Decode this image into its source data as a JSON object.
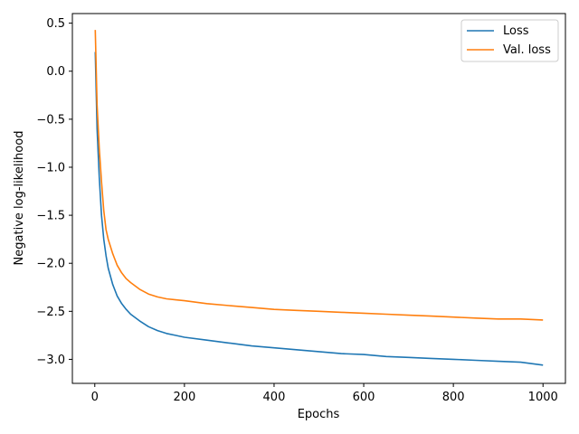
{
  "chart_data": {
    "type": "line",
    "xlabel": "Epochs",
    "ylabel": "Negative log-likelihood",
    "xlim": [
      -50,
      1050
    ],
    "ylim": [
      -3.25,
      0.6
    ],
    "xticks": [
      0,
      200,
      400,
      600,
      800,
      1000
    ],
    "yticks": [
      0.5,
      0.0,
      -0.5,
      -1.0,
      -1.5,
      -2.0,
      -2.5,
      -3.0
    ],
    "xtick_labels": [
      "0",
      "200",
      "400",
      "600",
      "800",
      "1000"
    ],
    "ytick_labels": [
      "0.5",
      "0.0",
      "−0.5",
      "−1.0",
      "−1.5",
      "−2.0",
      "−2.5",
      "−3.0"
    ],
    "grid": false,
    "legend": {
      "position": "top-right"
    },
    "series": [
      {
        "name": "Loss",
        "color": "#1f77b4",
        "x": [
          1,
          5,
          10,
          15,
          20,
          25,
          30,
          40,
          50,
          60,
          70,
          80,
          100,
          120,
          140,
          160,
          180,
          200,
          250,
          300,
          350,
          400,
          450,
          500,
          550,
          600,
          650,
          700,
          750,
          800,
          850,
          900,
          950,
          1000
        ],
        "y": [
          0.2,
          -0.6,
          -1.1,
          -1.5,
          -1.75,
          -1.92,
          -2.05,
          -2.22,
          -2.34,
          -2.42,
          -2.48,
          -2.53,
          -2.6,
          -2.66,
          -2.7,
          -2.73,
          -2.75,
          -2.77,
          -2.8,
          -2.83,
          -2.86,
          -2.88,
          -2.9,
          -2.92,
          -2.94,
          -2.95,
          -2.97,
          -2.98,
          -2.99,
          -3.0,
          -3.01,
          -3.02,
          -3.03,
          -3.06
        ]
      },
      {
        "name": "Val. loss",
        "color": "#ff7f0e",
        "x": [
          1,
          5,
          10,
          15,
          20,
          25,
          30,
          40,
          50,
          60,
          70,
          80,
          100,
          120,
          140,
          160,
          180,
          200,
          250,
          300,
          350,
          400,
          450,
          500,
          550,
          600,
          650,
          700,
          750,
          800,
          850,
          900,
          950,
          1000
        ],
        "y": [
          0.43,
          -0.35,
          -0.8,
          -1.15,
          -1.45,
          -1.65,
          -1.75,
          -1.9,
          -2.02,
          -2.1,
          -2.16,
          -2.2,
          -2.27,
          -2.32,
          -2.35,
          -2.37,
          -2.38,
          -2.39,
          -2.42,
          -2.44,
          -2.46,
          -2.48,
          -2.49,
          -2.5,
          -2.51,
          -2.52,
          -2.53,
          -2.54,
          -2.55,
          -2.56,
          -2.57,
          -2.58,
          -2.58,
          -2.59
        ]
      }
    ]
  }
}
